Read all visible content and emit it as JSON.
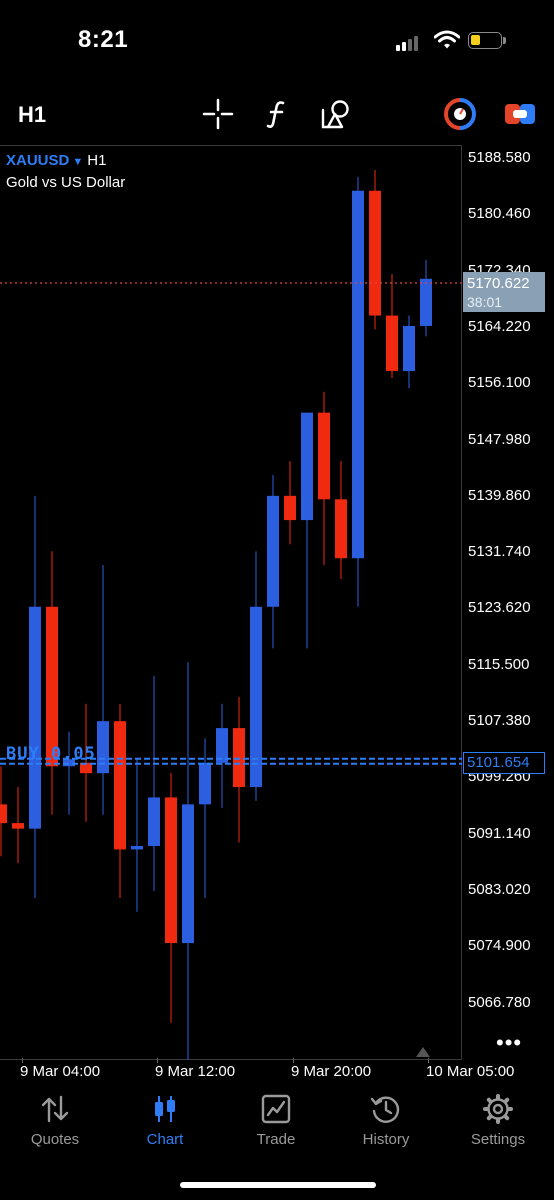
{
  "status": {
    "time": "8:21"
  },
  "toolbar": {
    "timeframe": "H1",
    "icons": [
      "crosshair-icon",
      "function-icon",
      "objects-icon",
      "accounts-icon",
      "trade-toggle-icon"
    ]
  },
  "chart": {
    "symbol": "XAUUSD",
    "symbol_timeframe": "H1",
    "description": "Gold vs US Dollar",
    "price_labels": [
      "5188.580",
      "5180.460",
      "5172.340",
      "5164.220",
      "5156.100",
      "5147.980",
      "5139.860",
      "5131.740",
      "5123.620",
      "5115.500",
      "5107.380",
      "5099.260",
      "5091.140",
      "5083.020",
      "5074.900",
      "5066.780"
    ],
    "bid_price": "5170.622",
    "bar_timer": "38:01",
    "position_price": "5101.654",
    "position_label": "BUY 0.05",
    "time_labels": [
      "9 Mar 04:00",
      "9 Mar 12:00",
      "9 Mar 20:00",
      "10 Mar 05:00"
    ],
    "colors": {
      "bull": "#2c5fe0",
      "bear": "#f02a10",
      "bid_line": "#e0454a",
      "position_line": "#2f7df6"
    }
  },
  "chart_data": {
    "type": "candlestick",
    "symbol": "XAUUSD",
    "timeframe": "H1",
    "ylim": [
      5060,
      5196
    ],
    "candles": [
      {
        "o": 5095.5,
        "h": 5101.0,
        "l": 5088.0,
        "c": 5092.8
      },
      {
        "o": 5092.8,
        "h": 5098.0,
        "l": 5087.0,
        "c": 5092.0
      },
      {
        "o": 5092.0,
        "h": 5140.0,
        "l": 5082.0,
        "c": 5124.0
      },
      {
        "o": 5124.0,
        "h": 5132.0,
        "l": 5094.0,
        "c": 5101.0
      },
      {
        "o": 5101.0,
        "h": 5106.0,
        "l": 5094.0,
        "c": 5102.0
      },
      {
        "o": 5101.5,
        "h": 5110.0,
        "l": 5093.0,
        "c": 5100.0
      },
      {
        "o": 5100.0,
        "h": 5130.0,
        "l": 5094.0,
        "c": 5107.5
      },
      {
        "o": 5107.5,
        "h": 5110.0,
        "l": 5082.0,
        "c": 5089.0
      },
      {
        "o": 5089.0,
        "h": 5102.0,
        "l": 5080.0,
        "c": 5089.5
      },
      {
        "o": 5089.5,
        "h": 5114.0,
        "l": 5083.0,
        "c": 5096.5
      },
      {
        "o": 5096.5,
        "h": 5100.0,
        "l": 5064.0,
        "c": 5075.5
      },
      {
        "o": 5075.5,
        "h": 5116.0,
        "l": 5055.0,
        "c": 5095.5
      },
      {
        "o": 5095.5,
        "h": 5105.0,
        "l": 5082.0,
        "c": 5101.5
      },
      {
        "o": 5101.5,
        "h": 5110.0,
        "l": 5095.0,
        "c": 5106.5
      },
      {
        "o": 5106.5,
        "h": 5111.0,
        "l": 5090.0,
        "c": 5098.0
      },
      {
        "o": 5098.0,
        "h": 5132.0,
        "l": 5096.0,
        "c": 5124.0
      },
      {
        "o": 5124.0,
        "h": 5143.0,
        "l": 5118.0,
        "c": 5140.0
      },
      {
        "o": 5140.0,
        "h": 5145.0,
        "l": 5133.0,
        "c": 5136.5
      },
      {
        "o": 5136.5,
        "h": 5152.0,
        "l": 5118.0,
        "c": 5152.0
      },
      {
        "o": 5152.0,
        "h": 5155.0,
        "l": 5130.0,
        "c": 5139.5
      },
      {
        "o": 5139.5,
        "h": 5145.0,
        "l": 5128.0,
        "c": 5131.0
      },
      {
        "o": 5131.0,
        "h": 5186.0,
        "l": 5124.0,
        "c": 5184.0
      },
      {
        "o": 5184.0,
        "h": 5187.0,
        "l": 5164.0,
        "c": 5166.0
      },
      {
        "o": 5166.0,
        "h": 5172.0,
        "l": 5157.0,
        "c": 5158.0
      },
      {
        "o": 5158.0,
        "h": 5166.0,
        "l": 5155.5,
        "c": 5164.5
      },
      {
        "o": 5164.5,
        "h": 5174.0,
        "l": 5163.0,
        "c": 5171.3
      }
    ],
    "bid": 5170.622,
    "position_price": 5101.654
  },
  "tabs": [
    {
      "label": "Quotes",
      "icon": "quotes-icon"
    },
    {
      "label": "Chart",
      "icon": "chart-icon"
    },
    {
      "label": "Trade",
      "icon": "trade-icon"
    },
    {
      "label": "History",
      "icon": "history-icon"
    },
    {
      "label": "Settings",
      "icon": "settings-icon"
    }
  ]
}
